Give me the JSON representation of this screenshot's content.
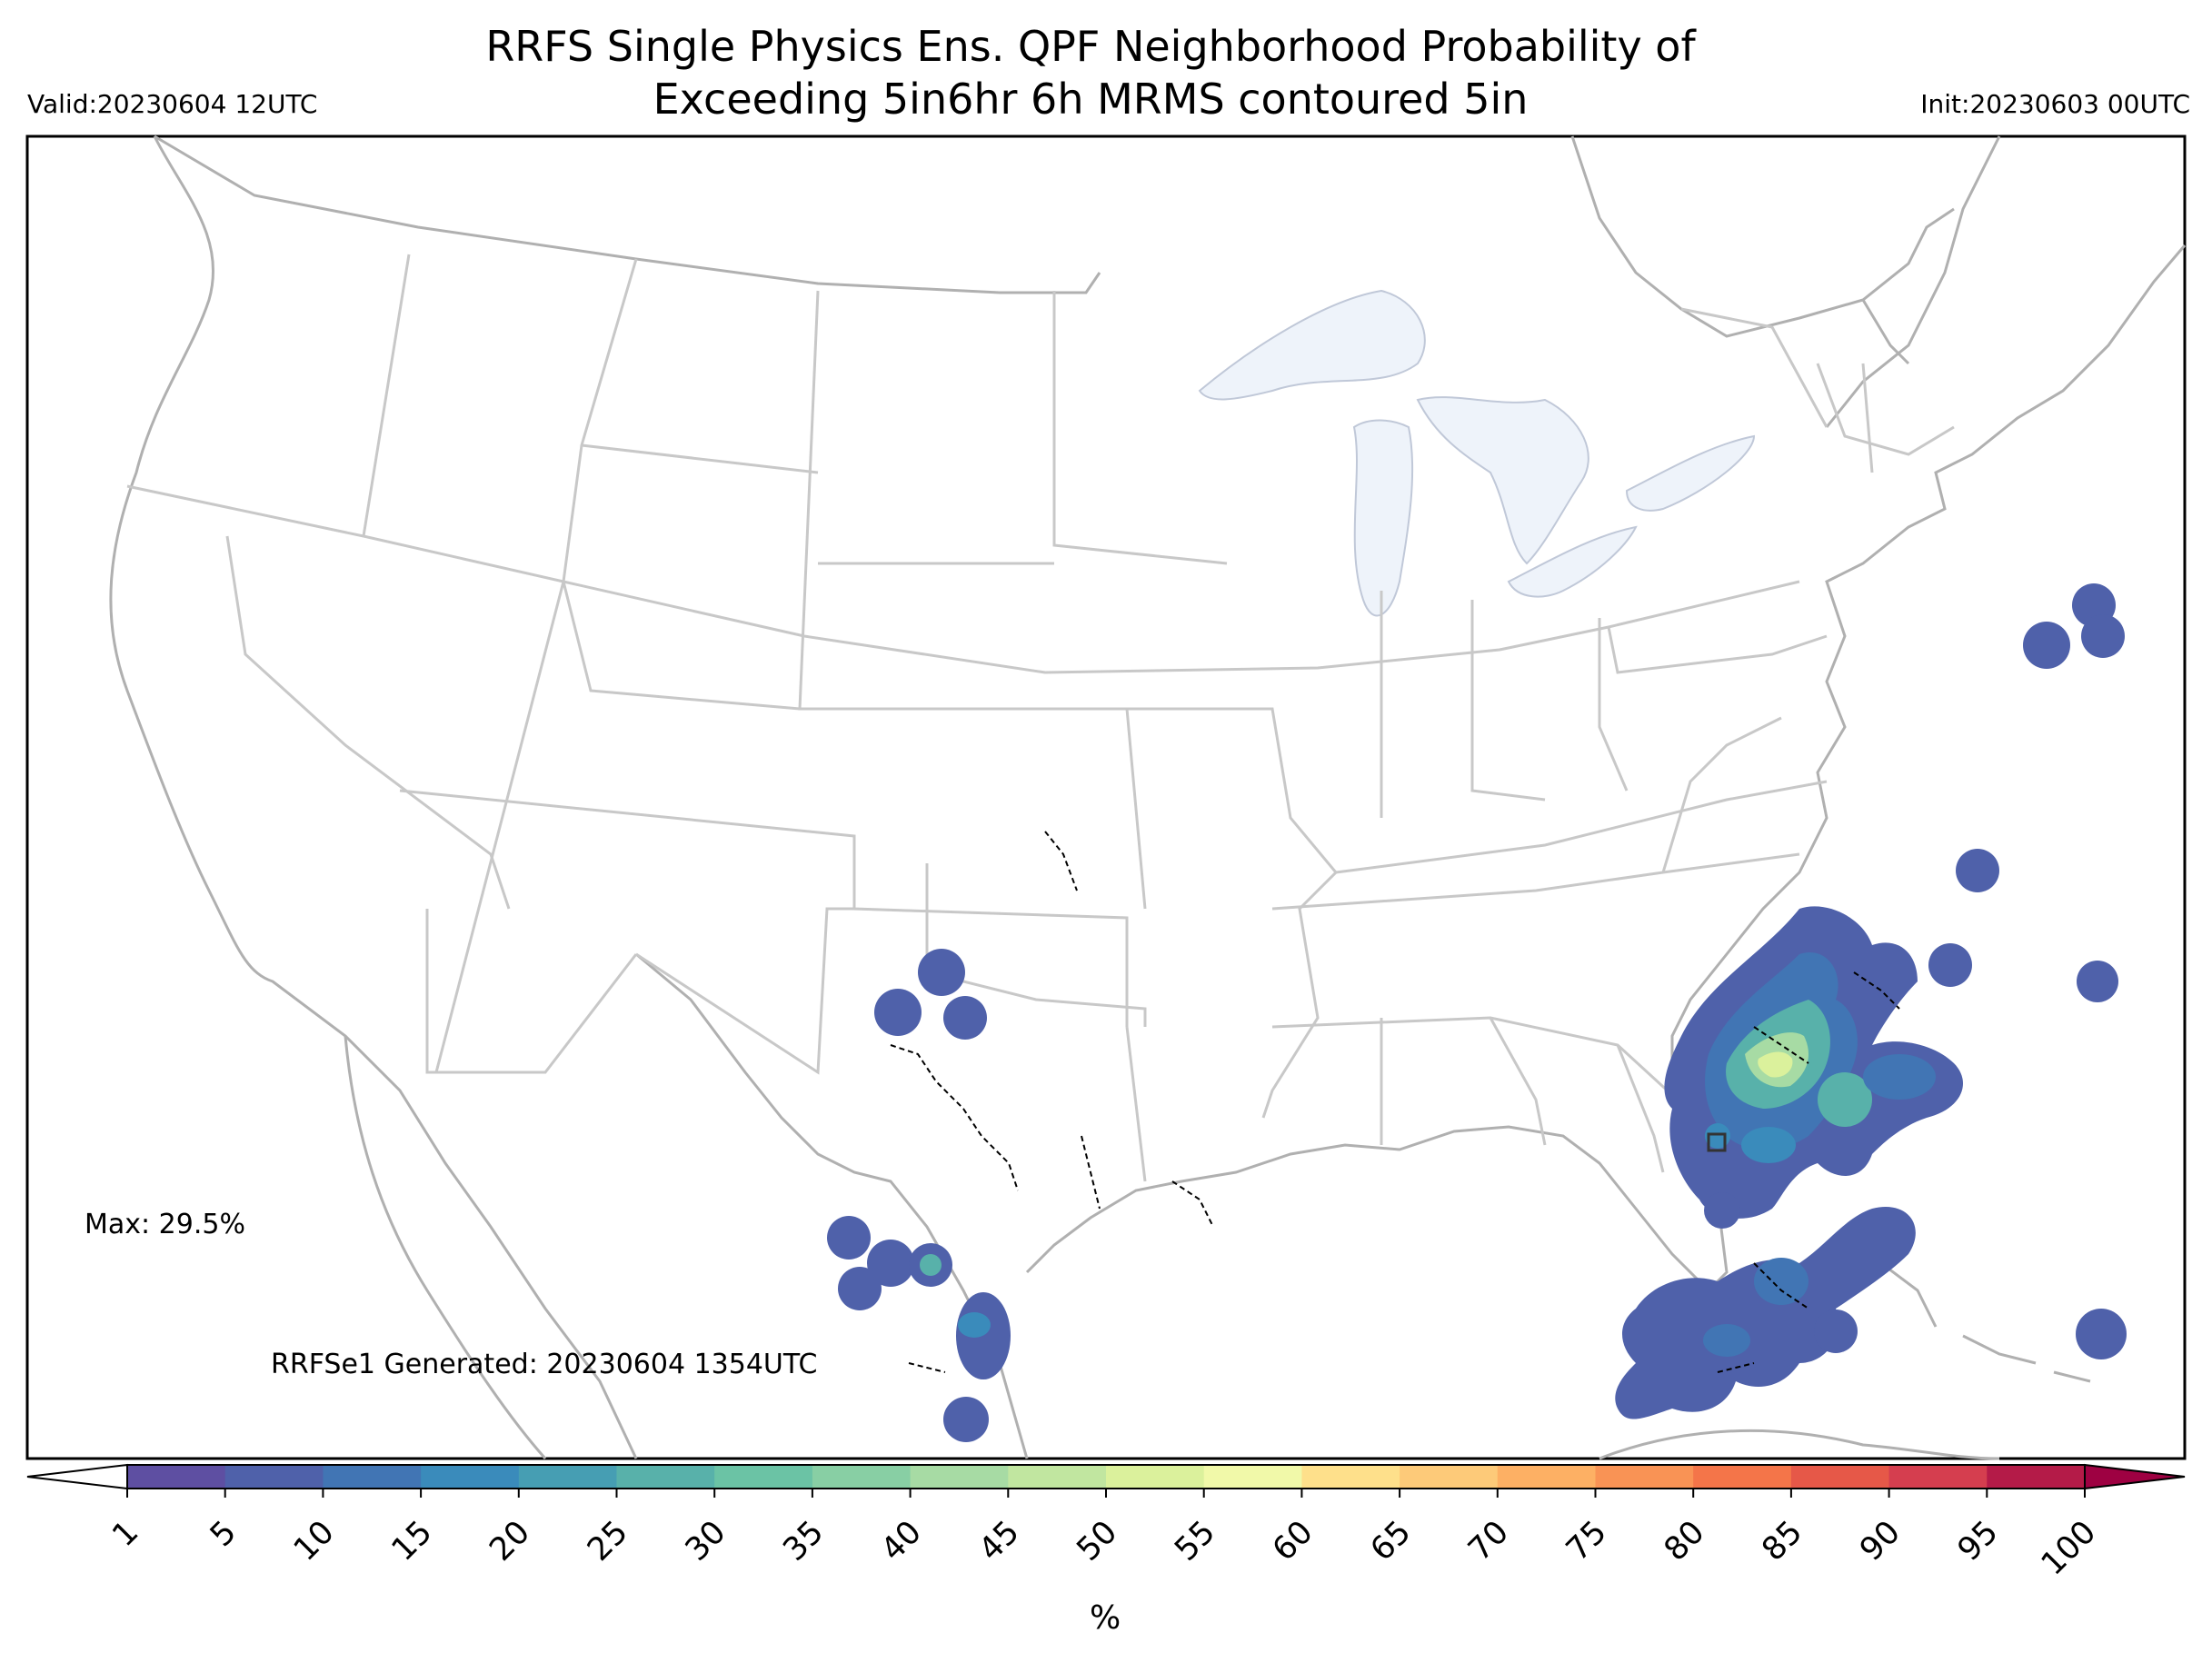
{
  "header": {
    "title_line1": "RRFS Single Physics Ens. QPF Neighborhood Probability of",
    "title_line2": "Exceeding 5in6hr 6h MRMS contoured 5in",
    "valid": "Valid:20230604 12UTC",
    "init": "Init:20230603 00UTC"
  },
  "annotations": {
    "max": "Max: 29.5%",
    "generated": "RRFSe1 Generated: 20230604 1354UTC"
  },
  "colorbar": {
    "unit": "%",
    "ticks": [
      "1",
      "5",
      "10",
      "15",
      "20",
      "25",
      "30",
      "35",
      "40",
      "45",
      "50",
      "55",
      "60",
      "65",
      "70",
      "75",
      "80",
      "85",
      "90",
      "95",
      "100"
    ],
    "colors": [
      "#5e4fa2",
      "#4f61aa",
      "#4175b4",
      "#3a8bbb",
      "#469eb3",
      "#58b1aa",
      "#6bc3a5",
      "#88cfa4",
      "#a7dba4",
      "#c1e6a0",
      "#dbf19c",
      "#f1f9a9",
      "#fee08b",
      "#fdca79",
      "#fdb064",
      "#f99355",
      "#f47549",
      "#e65848",
      "#d53e4f",
      "#b41b48",
      "#9e0142"
    ]
  },
  "map": {
    "land_outline_color": "#b0b0b0",
    "state_border_color": "#c8c8c8",
    "lake_fill": "#eef3fa",
    "contour_style": "dashed black"
  }
}
